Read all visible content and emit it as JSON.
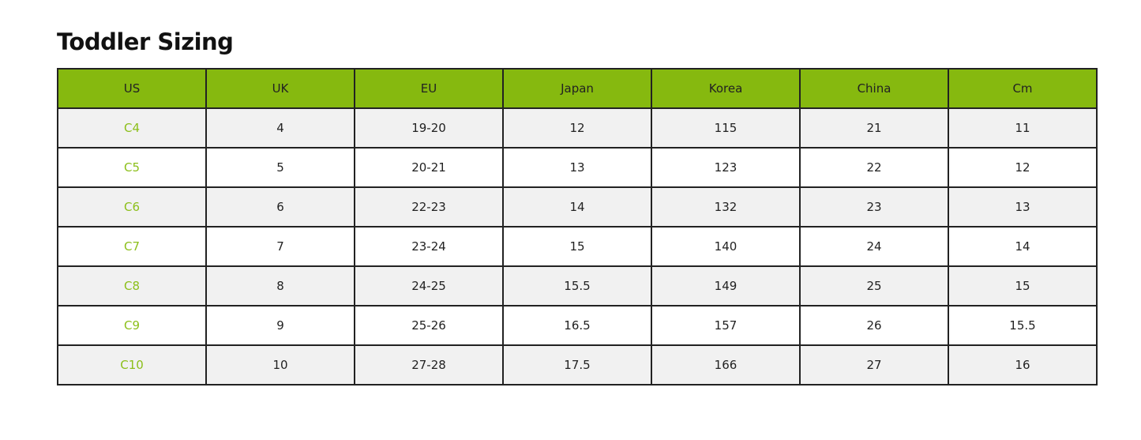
{
  "title": "Toddler Sizing",
  "colors": {
    "header_bg": "#86b90f",
    "us_text": "#8cbf1a",
    "odd_row": "#f1f1f1"
  },
  "headers": [
    "US",
    "UK",
    "EU",
    "Japan",
    "Korea",
    "China",
    "Cm"
  ],
  "rows": [
    [
      "C4",
      "4",
      "19-20",
      "12",
      "115",
      "21",
      "11"
    ],
    [
      "C5",
      "5",
      "20-21",
      "13",
      "123",
      "22",
      "12"
    ],
    [
      "C6",
      "6",
      "22-23",
      "14",
      "132",
      "23",
      "13"
    ],
    [
      "C7",
      "7",
      "23-24",
      "15",
      "140",
      "24",
      "14"
    ],
    [
      "C8",
      "8",
      "24-25",
      "15.5",
      "149",
      "25",
      "15"
    ],
    [
      "C9",
      "9",
      "25-26",
      "16.5",
      "157",
      "26",
      "15.5"
    ],
    [
      "C10",
      "10",
      "27-28",
      "17.5",
      "166",
      "27",
      "16"
    ]
  ]
}
